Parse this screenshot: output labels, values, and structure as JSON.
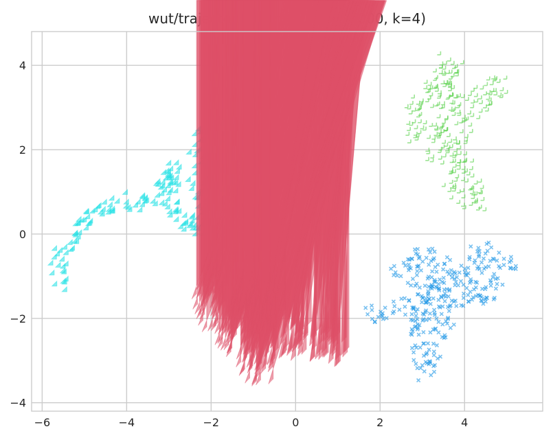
{
  "chart_data": {
    "type": "scatter",
    "title": "wut/trajectories.labels0 (n=10000, k=4)",
    "xlabel": "",
    "ylabel": "",
    "xlim": [
      -6.25,
      5.85
    ],
    "ylim": [
      -4.2,
      4.8
    ],
    "xticks": [
      -6,
      -4,
      -2,
      0,
      2,
      4
    ],
    "yticks": [
      -4,
      -2,
      0,
      2,
      4
    ],
    "grid": true,
    "legend": "none",
    "series": [
      {
        "color": "#26e2e6",
        "marker": "diamond",
        "path": [
          [
            -5.45,
            -1.2
          ],
          [
            -5.6,
            -0.9
          ],
          [
            -5.55,
            -0.5
          ],
          [
            -5.2,
            -0.2
          ],
          [
            -4.95,
            0.2
          ],
          [
            -4.8,
            0.45
          ],
          [
            -4.6,
            0.65
          ],
          [
            -4.3,
            0.6
          ],
          [
            -4.05,
            0.75
          ],
          [
            -3.7,
            0.7
          ],
          [
            -3.35,
            0.75
          ],
          [
            -3.1,
            0.95
          ],
          [
            -2.9,
            1.3
          ],
          [
            -2.8,
            1.55
          ],
          [
            -3.0,
            1.3
          ],
          [
            -2.85,
            0.6
          ],
          [
            -2.55,
            0.3
          ],
          [
            -2.45,
            0.05
          ],
          [
            -2.15,
            0.15
          ],
          [
            -2.2,
            0.65
          ],
          [
            -2.3,
            1.1
          ],
          [
            -2.1,
            1.55
          ],
          [
            -2.3,
            2.0
          ],
          [
            -2.05,
            2.35
          ],
          [
            -1.85,
            2.2
          ],
          [
            -1.6,
            2.25
          ],
          [
            -1.45,
            2.5
          ],
          [
            -1.35,
            2.85
          ],
          [
            -1.1,
            2.6
          ],
          [
            -0.8,
            2.4
          ],
          [
            -0.5,
            2.3
          ],
          [
            -0.15,
            2.2
          ],
          [
            0.05,
            2.05
          ],
          [
            -0.25,
            2.0
          ],
          [
            -0.65,
            2.05
          ],
          [
            -1.0,
            2.05
          ],
          [
            -1.25,
            1.9
          ],
          [
            -1.55,
            1.7
          ],
          [
            -1.75,
            1.5
          ],
          [
            -1.85,
            1.2
          ],
          [
            -1.95,
            0.9
          ],
          [
            -1.8,
            0.6
          ],
          [
            -1.55,
            0.5
          ],
          [
            -1.4,
            0.3
          ],
          [
            -1.5,
            0.05
          ],
          [
            -1.7,
            0.1
          ],
          [
            -1.9,
            0.5
          ],
          [
            -1.85,
            0.9
          ]
        ]
      },
      {
        "color": "#5cd24e",
        "marker": "plus",
        "path": [
          [
            3.35,
            3.85
          ],
          [
            3.55,
            4.05
          ],
          [
            3.85,
            3.8
          ],
          [
            3.7,
            3.4
          ],
          [
            3.85,
            3.05
          ],
          [
            4.15,
            3.2
          ],
          [
            4.4,
            3.35
          ],
          [
            4.75,
            3.5
          ],
          [
            4.95,
            3.45
          ],
          [
            4.7,
            3.1
          ],
          [
            4.4,
            3.0
          ],
          [
            4.1,
            2.75
          ],
          [
            3.95,
            2.4
          ],
          [
            3.85,
            2.1
          ],
          [
            4.05,
            1.75
          ],
          [
            4.25,
            1.25
          ],
          [
            4.15,
            0.9
          ],
          [
            4.35,
            0.65
          ],
          [
            3.95,
            0.95
          ],
          [
            3.7,
            1.15
          ],
          [
            3.95,
            1.55
          ],
          [
            3.65,
            1.75
          ],
          [
            3.55,
            2.25
          ],
          [
            3.35,
            2.45
          ],
          [
            3.05,
            2.55
          ],
          [
            2.9,
            2.3
          ],
          [
            2.85,
            2.8
          ],
          [
            2.75,
            3.1
          ],
          [
            3.05,
            3.05
          ],
          [
            3.25,
            3.3
          ],
          [
            3.25,
            3.6
          ],
          [
            3.5,
            3.75
          ],
          [
            3.6,
            2.8
          ],
          [
            3.35,
            2.0
          ],
          [
            3.15,
            1.75
          ]
        ]
      },
      {
        "color": "#de5067",
        "marker": "triangle",
        "path": [
          [
            -1.95,
            -2.5
          ],
          [
            -2.0,
            -2.05
          ],
          [
            -2.15,
            -1.55
          ],
          [
            -1.85,
            -1.35
          ],
          [
            -1.55,
            -1.55
          ],
          [
            -1.35,
            -1.3
          ],
          [
            -1.1,
            -1.5
          ],
          [
            -0.8,
            -1.65
          ],
          [
            -0.55,
            -1.85
          ],
          [
            -0.2,
            -2.05
          ],
          [
            -0.1,
            -2.35
          ],
          [
            0.2,
            -2.35
          ],
          [
            0.55,
            -2.5
          ],
          [
            0.85,
            -2.35
          ],
          [
            1.05,
            -2.5
          ],
          [
            1.1,
            -2.85
          ],
          [
            0.85,
            -3.0
          ],
          [
            0.5,
            -2.85
          ],
          [
            0.2,
            -2.8
          ],
          [
            -0.1,
            -2.85
          ],
          [
            -0.35,
            -2.95
          ],
          [
            -0.65,
            -3.1
          ],
          [
            -0.75,
            -3.45
          ],
          [
            -0.85,
            -3.5
          ],
          [
            -1.05,
            -3.25
          ],
          [
            -1.15,
            -2.9
          ],
          [
            -1.35,
            -2.75
          ],
          [
            -1.7,
            -2.6
          ],
          [
            -1.55,
            -2.3
          ],
          [
            -1.2,
            -2.15
          ],
          [
            -0.9,
            -2.2
          ],
          [
            -0.6,
            -2.45
          ],
          [
            -0.3,
            -2.55
          ],
          [
            -1.4,
            -1.85
          ],
          [
            -0.5,
            -2.2
          ]
        ]
      },
      {
        "color": "#2297e6",
        "marker": "x",
        "path": [
          [
            1.75,
            -1.85
          ],
          [
            2.05,
            -2.05
          ],
          [
            2.3,
            -1.95
          ],
          [
            2.55,
            -1.65
          ],
          [
            2.75,
            -1.75
          ],
          [
            2.9,
            -2.0
          ],
          [
            2.95,
            -2.45
          ],
          [
            2.9,
            -2.85
          ],
          [
            3.1,
            -3.1
          ],
          [
            3.15,
            -3.35
          ],
          [
            3.3,
            -3.05
          ],
          [
            3.35,
            -2.6
          ],
          [
            3.5,
            -2.25
          ],
          [
            3.75,
            -2.0
          ],
          [
            3.9,
            -1.75
          ],
          [
            4.0,
            -1.45
          ],
          [
            4.15,
            -1.2
          ],
          [
            4.4,
            -1.5
          ],
          [
            4.55,
            -1.8
          ],
          [
            4.65,
            -1.4
          ],
          [
            4.75,
            -1.05
          ],
          [
            4.95,
            -0.85
          ],
          [
            5.15,
            -0.65
          ],
          [
            4.85,
            -0.55
          ],
          [
            4.6,
            -0.45
          ],
          [
            4.4,
            -0.35
          ],
          [
            4.25,
            -0.75
          ],
          [
            4.05,
            -0.8
          ],
          [
            3.8,
            -0.9
          ],
          [
            3.6,
            -0.8
          ],
          [
            3.45,
            -1.2
          ],
          [
            3.3,
            -1.45
          ],
          [
            3.0,
            -1.3
          ],
          [
            2.85,
            -1.0
          ],
          [
            2.65,
            -0.9
          ],
          [
            2.45,
            -0.8
          ],
          [
            3.2,
            -0.5
          ],
          [
            3.05,
            -0.75
          ],
          [
            3.6,
            -1.6
          ],
          [
            3.3,
            -1.9
          ],
          [
            3.0,
            -2.2
          ],
          [
            2.9,
            -1.6
          ],
          [
            4.1,
            -1.0
          ],
          [
            4.5,
            -0.9
          ]
        ]
      }
    ]
  }
}
